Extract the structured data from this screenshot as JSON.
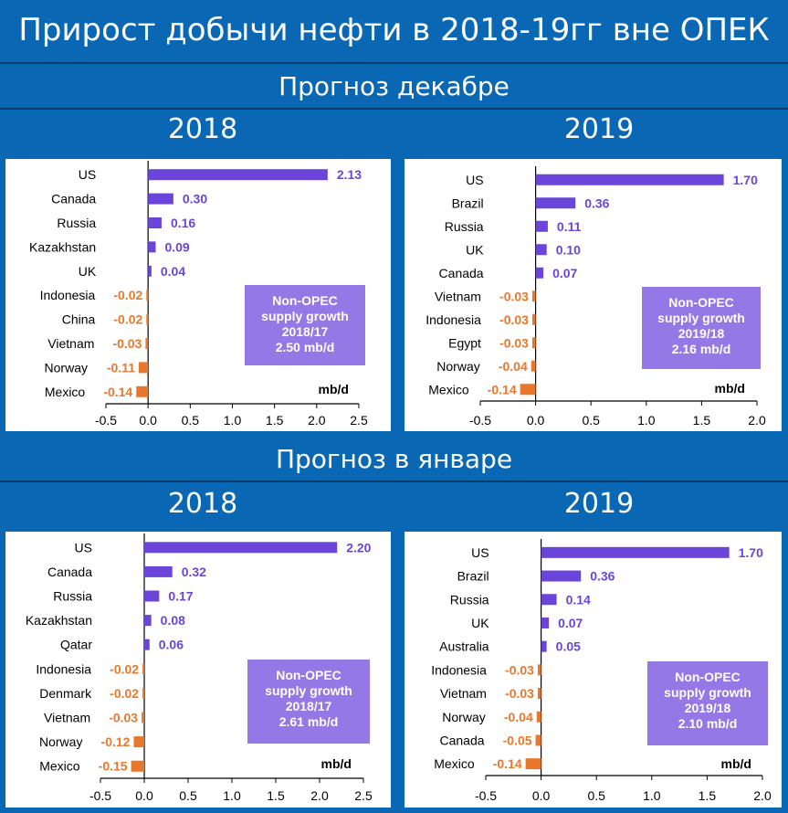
{
  "title": "Прирост добычи нефти в 2018-19гг вне ОПЕК",
  "sections": [
    {
      "label": "Прогноз декабре"
    },
    {
      "label": "Прогноз в январе"
    }
  ],
  "colors": {
    "positive": "#6b45d9",
    "negative": "#e8782b",
    "box": "#9479e6",
    "background": "#0a67b4"
  },
  "chart_data": [
    {
      "type": "bar",
      "orientation": "horizontal",
      "section": "Прогноз декабре",
      "year": "2018",
      "categories": [
        "US",
        "Canada",
        "Russia",
        "Kazakhstan",
        "UK",
        "Indonesia",
        "China",
        "Vietnam",
        "Norway",
        "Mexico"
      ],
      "values": [
        2.13,
        0.3,
        0.16,
        0.09,
        0.04,
        -0.02,
        -0.02,
        -0.03,
        -0.11,
        -0.14
      ],
      "labels": [
        "2.13",
        "0.30",
        "0.16",
        "0.09",
        "0.04",
        "-0.02",
        "-0.02",
        "-0.03",
        "-0.11",
        "-0.14"
      ],
      "xlim": [
        -0.5,
        2.5
      ],
      "ticks": [
        "-0.5",
        "0.0",
        "0.5",
        "1.0",
        "1.5",
        "2.0",
        "2.5"
      ],
      "unit": "mb/d",
      "box": [
        "Non-OPEC",
        "supply growth",
        "2018/17",
        "2.50 mb/d"
      ]
    },
    {
      "type": "bar",
      "orientation": "horizontal",
      "section": "Прогноз декабре",
      "year": "2019",
      "categories": [
        "US",
        "Brazil",
        "Russia",
        "UK",
        "Canada",
        "Vietnam",
        "Indonesia",
        "Egypt",
        "Norway",
        "Mexico"
      ],
      "values": [
        1.7,
        0.36,
        0.11,
        0.1,
        0.07,
        -0.03,
        -0.03,
        -0.03,
        -0.04,
        -0.14
      ],
      "labels": [
        "1.70",
        "0.36",
        "0.11",
        "0.10",
        "0.07",
        "-0.03",
        "-0.03",
        "-0.03",
        "-0.04",
        "-0.14"
      ],
      "xlim": [
        -0.5,
        2.0
      ],
      "ticks": [
        "-0.5",
        "0.0",
        "0.5",
        "1.0",
        "1.5",
        "2.0"
      ],
      "unit": "mb/d",
      "box": [
        "Non-OPEC",
        "supply growth",
        "2019/18",
        "2.16 mb/d"
      ]
    },
    {
      "type": "bar",
      "orientation": "horizontal",
      "section": "Прогноз в январе",
      "year": "2018",
      "categories": [
        "US",
        "Canada",
        "Russia",
        "Kazakhstan",
        "Qatar",
        "Indonesia",
        "Denmark",
        "Vietnam",
        "Norway",
        "Mexico"
      ],
      "values": [
        2.2,
        0.32,
        0.17,
        0.08,
        0.06,
        -0.02,
        -0.02,
        -0.03,
        -0.12,
        -0.15
      ],
      "labels": [
        "2.20",
        "0.32",
        "0.17",
        "0.08",
        "0.06",
        "-0.02",
        "-0.02",
        "-0.03",
        "-0.12",
        "-0.15"
      ],
      "xlim": [
        -0.5,
        2.5
      ],
      "ticks": [
        "-0.5",
        "0.0",
        "0.5",
        "1.0",
        "1.5",
        "2.0",
        "2.5"
      ],
      "unit": "mb/d",
      "box": [
        "Non-OPEC",
        "supply growth",
        "2018/17",
        "2.61 mb/d"
      ]
    },
    {
      "type": "bar",
      "orientation": "horizontal",
      "section": "Прогноз в январе",
      "year": "2019",
      "categories": [
        "US",
        "Brazil",
        "Russia",
        "UK",
        "Australia",
        "Indonesia",
        "Vietnam",
        "Norway",
        "Canada",
        "Mexico"
      ],
      "values": [
        1.7,
        0.36,
        0.14,
        0.07,
        0.05,
        -0.03,
        -0.03,
        -0.04,
        -0.05,
        -0.14
      ],
      "labels": [
        "1.70",
        "0.36",
        "0.14",
        "0.07",
        "0.05",
        "-0.03",
        "-0.03",
        "-0.04",
        "-0.05",
        "-0.14"
      ],
      "xlim": [
        -0.5,
        2.0
      ],
      "ticks": [
        "-0.5",
        "0.0",
        "0.5",
        "1.0",
        "1.5",
        "2.0"
      ],
      "unit": "mb/d",
      "box": [
        "Non-OPEC",
        "supply growth",
        "2019/18",
        "2.10 mb/d"
      ]
    }
  ]
}
